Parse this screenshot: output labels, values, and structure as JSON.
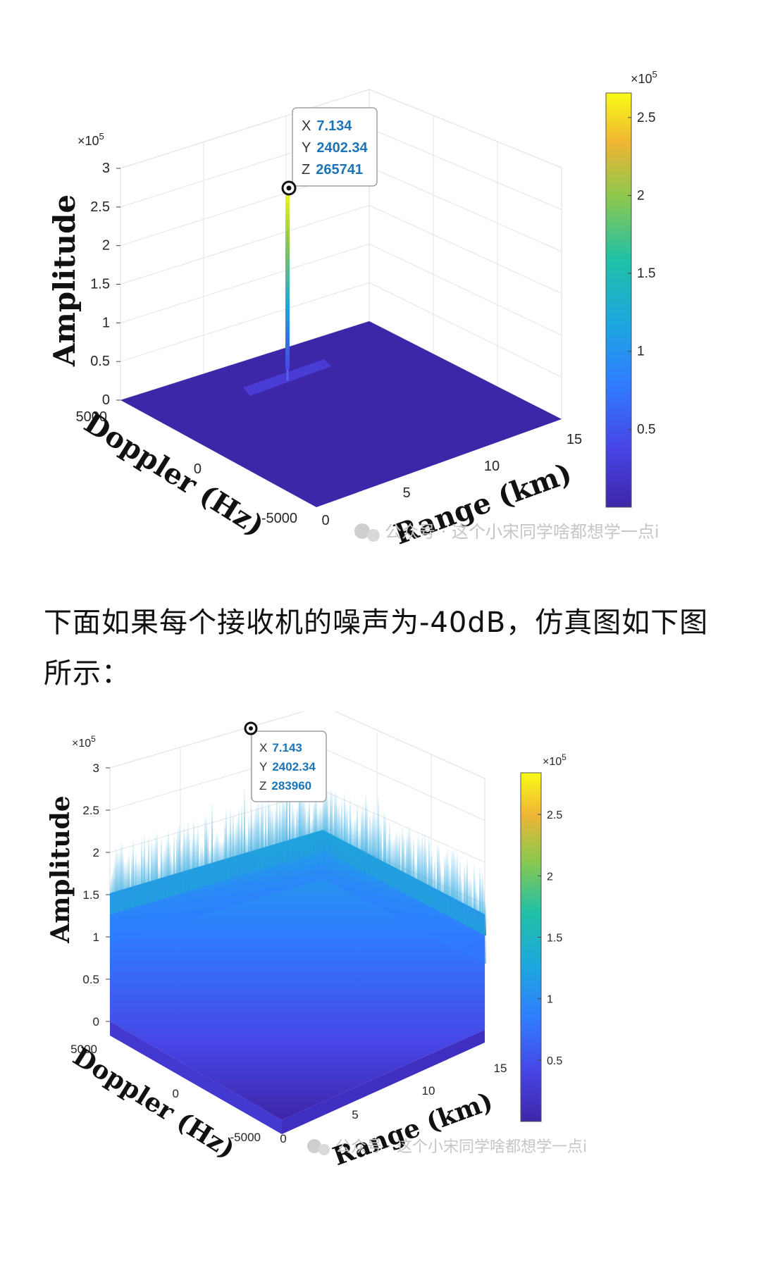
{
  "paragraph": "下面如果每个接收机的噪声为-40dB，仿真图如下图所示：",
  "watermark": "公众号 · 这个小宋同学啥都想学一点i",
  "colors": {
    "surface_low": "#3e26a8",
    "colormap": [
      "#3e26a8",
      "#4744e5",
      "#2f7eff",
      "#1ca8de",
      "#21c1a6",
      "#8cc84c",
      "#f0b535",
      "#f9fb15"
    ]
  },
  "charts": [
    {
      "xlabel": "Range (km)",
      "ylabel": "Doppler (Hz)",
      "zlabel": "Amplitude",
      "exponent": "×10",
      "exponent_power": "5",
      "xticks": [
        "0",
        "5",
        "10",
        "15"
      ],
      "yticks": [
        "5000",
        "0",
        "-5000"
      ],
      "zticks": [
        "0",
        "0.5",
        "1",
        "1.5",
        "2",
        "2.5",
        "3"
      ],
      "cbar_exponent": "×10",
      "cbar_exponent_power": "5",
      "cbar_ticks": [
        "0.5",
        "1",
        "1.5",
        "2",
        "2.5"
      ],
      "datatip": {
        "x_key": "X",
        "x": "7.134",
        "y_key": "Y",
        "y": "2402.34",
        "z_key": "Z",
        "z": "265741"
      }
    },
    {
      "xlabel": "Range (km)",
      "ylabel": "Doppler (Hz)",
      "zlabel": "Amplitude",
      "exponent": "×10",
      "exponent_power": "5",
      "xticks": [
        "0",
        "5",
        "10",
        "15"
      ],
      "yticks": [
        "5000",
        "0",
        "-5000"
      ],
      "zticks": [
        "0",
        "0.5",
        "1",
        "1.5",
        "2",
        "2.5",
        "3"
      ],
      "cbar_exponent": "×10",
      "cbar_exponent_power": "5",
      "cbar_ticks": [
        "0.5",
        "1",
        "1.5",
        "2",
        "2.5"
      ],
      "datatip": {
        "x_key": "X",
        "x": "7.143",
        "y_key": "Y",
        "y": "2402.34",
        "z_key": "Z",
        "z": "283960"
      }
    }
  ],
  "chart_data": [
    {
      "type": "surface",
      "xlabel": "Range (km)",
      "ylabel": "Doppler (Hz)",
      "zlabel": "Amplitude",
      "xlim": [
        0,
        15
      ],
      "ylim": [
        -5000,
        5000
      ],
      "zlim": [
        0,
        300000
      ],
      "colorbar_range": [
        0,
        265741
      ],
      "peak": {
        "x": 7.134,
        "y": 2402.34,
        "z": 265741
      },
      "noise_level": 0,
      "grid": true
    },
    {
      "type": "surface",
      "xlabel": "Range (km)",
      "ylabel": "Doppler (Hz)",
      "zlabel": "Amplitude",
      "xlim": [
        0,
        15
      ],
      "ylim": [
        -5000,
        5000
      ],
      "zlim": [
        0,
        300000
      ],
      "colorbar_range": [
        0,
        283960
      ],
      "peak": {
        "x": 7.143,
        "y": 2402.34,
        "z": 283960
      },
      "noise_level": 100000,
      "grid": true
    }
  ]
}
